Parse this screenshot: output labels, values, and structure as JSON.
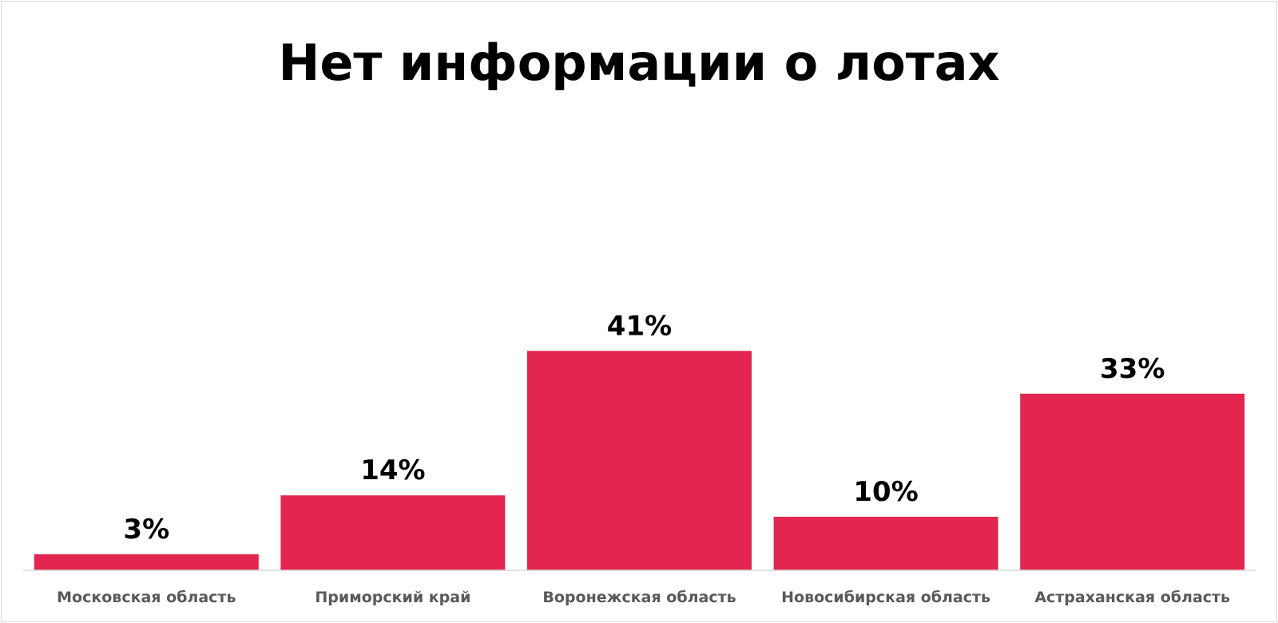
{
  "chart_data": {
    "type": "bar",
    "title": "Нет информации о лотах",
    "xlabel": "",
    "ylabel": "",
    "categories": [
      "Московская область",
      "Приморский край",
      "Воронежская область",
      "Новосибирская область",
      "Астраханская область"
    ],
    "values": [
      3,
      14,
      41,
      10,
      33
    ],
    "value_labels": [
      "3%",
      "14%",
      "41%",
      "10%",
      "33%"
    ],
    "ylim": [
      0,
      100
    ],
    "grid": false,
    "legend": "none",
    "bar_color": "#e2264f",
    "axis_line_color": "#d9d9d9"
  }
}
